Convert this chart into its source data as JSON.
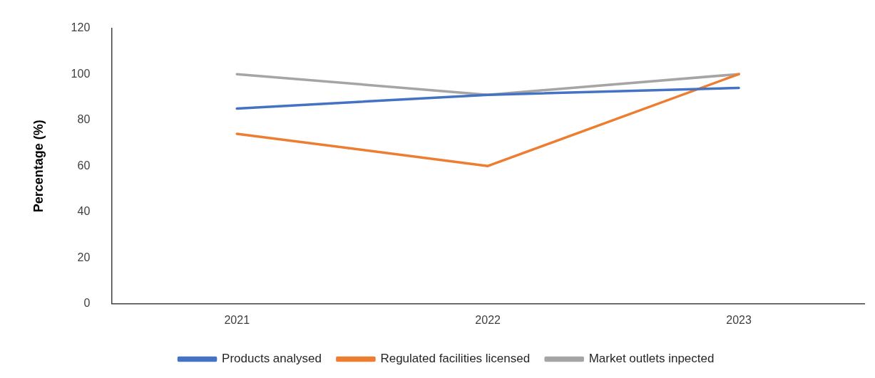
{
  "chart_data": {
    "type": "line",
    "ylabel": "Percentage (%)",
    "categories": [
      "2021",
      "2022",
      "2023"
    ],
    "series": [
      {
        "name": "Products analysed",
        "color": "#4472c4",
        "values": [
          85,
          91,
          94
        ]
      },
      {
        "name": "Regulated facilities licensed",
        "color": "#ed7d31",
        "values": [
          74,
          60,
          100
        ]
      },
      {
        "name": "Market outlets inpected",
        "color": "#a5a5a5",
        "values": [
          100,
          91,
          100
        ]
      }
    ],
    "ylim": [
      0,
      120
    ],
    "yticks": [
      0,
      20,
      40,
      60,
      80,
      100,
      120
    ],
    "grid": false,
    "legend": "bottom",
    "marker": "none",
    "line_style": "solid"
  }
}
